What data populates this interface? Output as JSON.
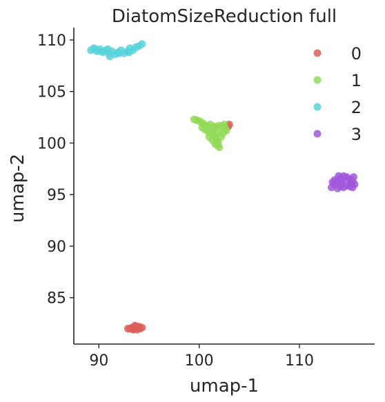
{
  "chart_data": {
    "type": "scatter",
    "title": "DiatomSizeReduction full",
    "xlabel": "umap-1",
    "ylabel": "umap-2",
    "xlim": [
      87.5,
      117.5
    ],
    "ylim": [
      80.5,
      111.2
    ],
    "xticks": [
      90,
      100,
      110
    ],
    "yticks": [
      85,
      90,
      95,
      100,
      105,
      110
    ],
    "grid": false,
    "legend_position": "top-right",
    "series": [
      {
        "name": "0",
        "color": "#db5f57",
        "points": [
          [
            93.1,
            82.0
          ],
          [
            93.3,
            82.1
          ],
          [
            93.5,
            82.0
          ],
          [
            93.7,
            82.2
          ],
          [
            93.9,
            82.1
          ],
          [
            94.1,
            82.0
          ],
          [
            94.3,
            82.1
          ],
          [
            93.4,
            81.9
          ],
          [
            93.8,
            81.9
          ],
          [
            94.0,
            82.2
          ],
          [
            92.9,
            82.0
          ],
          [
            93.6,
            82.3
          ],
          [
            103.0,
            101.8
          ],
          [
            102.9,
            101.6
          ]
        ]
      },
      {
        "name": "1",
        "color": "#91db57",
        "points": [
          [
            99.5,
            102.3
          ],
          [
            99.8,
            102.2
          ],
          [
            100.1,
            102.1
          ],
          [
            100.4,
            101.9
          ],
          [
            100.6,
            101.7
          ],
          [
            100.3,
            101.5
          ],
          [
            100.6,
            101.3
          ],
          [
            100.9,
            101.1
          ],
          [
            101.2,
            100.9
          ],
          [
            101.5,
            100.7
          ],
          [
            101.7,
            100.4
          ],
          [
            101.9,
            100.1
          ],
          [
            101.8,
            99.8
          ],
          [
            102.0,
            99.6
          ],
          [
            101.6,
            99.9
          ],
          [
            101.3,
            100.3
          ],
          [
            101.0,
            100.6
          ],
          [
            101.4,
            101.2
          ],
          [
            101.7,
            101.5
          ],
          [
            102.0,
            101.7
          ],
          [
            102.3,
            101.6
          ],
          [
            102.6,
            101.4
          ],
          [
            102.4,
            101.0
          ],
          [
            102.2,
            100.6
          ],
          [
            102.5,
            101.8
          ],
          [
            101.1,
            101.8
          ],
          [
            100.8,
            101.6
          ],
          [
            101.9,
            101.0
          ],
          [
            102.7,
            101.2
          ],
          [
            101.5,
            101.6
          ]
        ]
      },
      {
        "name": "2",
        "color": "#57d3db",
        "points": [
          [
            89.2,
            109.0
          ],
          [
            89.5,
            109.2
          ],
          [
            89.8,
            108.9
          ],
          [
            90.1,
            109.1
          ],
          [
            90.4,
            108.8
          ],
          [
            90.7,
            109.0
          ],
          [
            91.0,
            108.7
          ],
          [
            91.3,
            108.9
          ],
          [
            91.6,
            108.6
          ],
          [
            91.9,
            108.8
          ],
          [
            92.2,
            109.0
          ],
          [
            92.5,
            108.7
          ],
          [
            92.8,
            108.9
          ],
          [
            93.1,
            109.2
          ],
          [
            93.4,
            109.0
          ],
          [
            93.7,
            109.3
          ],
          [
            94.0,
            109.4
          ],
          [
            94.3,
            109.6
          ],
          [
            89.7,
            109.1
          ],
          [
            90.9,
            109.1
          ],
          [
            92.0,
            108.7
          ],
          [
            93.0,
            108.8
          ],
          [
            91.1,
            108.4
          ],
          [
            90.2,
            108.9
          ]
        ]
      },
      {
        "name": "3",
        "color": "#a157db",
        "points": [
          [
            113.2,
            95.7
          ],
          [
            113.5,
            96.0
          ],
          [
            113.8,
            96.3
          ],
          [
            114.1,
            96.6
          ],
          [
            114.4,
            96.8
          ],
          [
            114.7,
            96.7
          ],
          [
            115.0,
            96.5
          ],
          [
            115.3,
            96.3
          ],
          [
            115.5,
            96.0
          ],
          [
            115.3,
            95.7
          ],
          [
            115.0,
            95.8
          ],
          [
            114.7,
            95.9
          ],
          [
            114.4,
            95.7
          ],
          [
            114.1,
            95.8
          ],
          [
            113.8,
            95.6
          ],
          [
            113.5,
            96.4
          ],
          [
            113.9,
            96.8
          ],
          [
            114.3,
            96.4
          ],
          [
            115.4,
            96.7
          ],
          [
            113.3,
            96.2
          ],
          [
            114.2,
            96.1
          ],
          [
            115.1,
            96.1
          ]
        ]
      }
    ]
  }
}
